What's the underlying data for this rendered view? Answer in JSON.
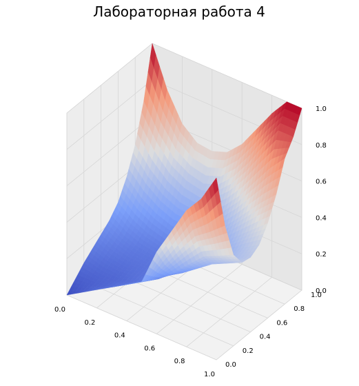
{
  "chart_data": {
    "type": "surface3d",
    "title": "Лабораторная работа 4",
    "colormap": "coolwarm",
    "x_ticks": [
      "0.0",
      "0.2",
      "0.4",
      "0.6",
      "0.8",
      "1.0"
    ],
    "y_ticks": [
      "0.0",
      "0.2",
      "0.4",
      "0.6",
      "0.8",
      "1.0"
    ],
    "z_ticks": [
      "0.0",
      "0.2",
      "0.4",
      "0.6",
      "0.8",
      "1.0"
    ],
    "xlim": [
      0,
      1
    ],
    "ylim": [
      0,
      1
    ],
    "zlim": [
      0,
      1
    ],
    "grid": true,
    "surface": {
      "x": [
        0.0,
        0.1,
        0.2,
        0.3,
        0.4,
        0.5,
        0.6,
        0.7,
        0.8,
        0.9,
        1.0
      ],
      "y": [
        0.0,
        0.1,
        0.2,
        0.3,
        0.4,
        0.5,
        0.6,
        0.7,
        0.8,
        0.9,
        1.0
      ],
      "z": [
        [
          0.0,
          0.05,
          0.1,
          0.15,
          0.2,
          0.25,
          0.45,
          0.6,
          0.75,
          0.85,
          1.0
        ],
        [
          0.05,
          0.06,
          0.08,
          0.12,
          0.17,
          0.22,
          0.34,
          0.46,
          0.57,
          0.63,
          0.7
        ],
        [
          0.1,
          0.08,
          0.08,
          0.1,
          0.14,
          0.19,
          0.26,
          0.34,
          0.42,
          0.46,
          0.5
        ],
        [
          0.14,
          0.11,
          0.1,
          0.11,
          0.13,
          0.17,
          0.22,
          0.28,
          0.34,
          0.38,
          0.42
        ],
        [
          0.18,
          0.14,
          0.12,
          0.12,
          0.13,
          0.16,
          0.2,
          0.26,
          0.32,
          0.37,
          0.41
        ],
        [
          0.22,
          0.17,
          0.14,
          0.13,
          0.14,
          0.16,
          0.21,
          0.27,
          0.33,
          0.39,
          0.44
        ],
        [
          0.28,
          0.22,
          0.18,
          0.16,
          0.17,
          0.19,
          0.24,
          0.31,
          0.38,
          0.45,
          0.52
        ],
        [
          0.38,
          0.3,
          0.25,
          0.22,
          0.22,
          0.25,
          0.3,
          0.38,
          0.47,
          0.56,
          0.64
        ],
        [
          0.52,
          0.42,
          0.35,
          0.31,
          0.3,
          0.33,
          0.4,
          0.49,
          0.6,
          0.71,
          0.8
        ],
        [
          0.72,
          0.58,
          0.48,
          0.43,
          0.41,
          0.44,
          0.52,
          0.63,
          0.76,
          0.88,
          0.88
        ],
        [
          1.0,
          0.78,
          0.63,
          0.56,
          0.55,
          0.58,
          0.66,
          0.78,
          0.9,
          1.0,
          1.0
        ]
      ]
    },
    "colors": {
      "pane_left": "#ededed",
      "pane_right": "#e6e6e6",
      "pane_floor": "#f2f2f2",
      "grid": "#ffffff",
      "low": "#3b4cc0",
      "mid": "#dddddd",
      "high": "#b40426"
    }
  }
}
